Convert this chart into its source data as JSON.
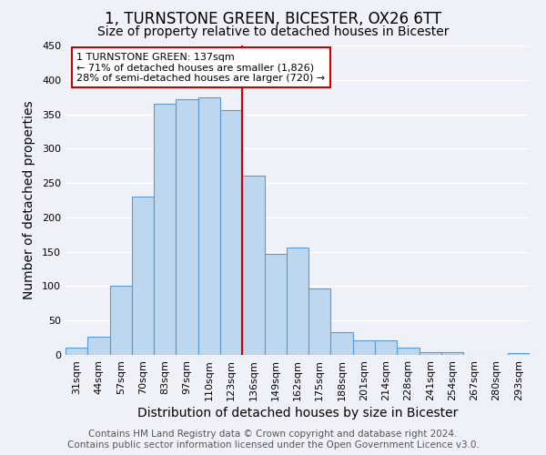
{
  "title": "1, TURNSTONE GREEN, BICESTER, OX26 6TT",
  "subtitle": "Size of property relative to detached houses in Bicester",
  "xlabel": "Distribution of detached houses by size in Bicester",
  "ylabel": "Number of detached properties",
  "bar_labels": [
    "31sqm",
    "44sqm",
    "57sqm",
    "70sqm",
    "83sqm",
    "97sqm",
    "110sqm",
    "123sqm",
    "136sqm",
    "149sqm",
    "162sqm",
    "175sqm",
    "188sqm",
    "201sqm",
    "214sqm",
    "228sqm",
    "241sqm",
    "254sqm",
    "267sqm",
    "280sqm",
    "293sqm"
  ],
  "bar_heights": [
    10,
    26,
    100,
    230,
    365,
    372,
    374,
    356,
    261,
    147,
    156,
    96,
    33,
    21,
    21,
    11,
    4,
    4,
    0,
    0,
    2
  ],
  "bar_color": "#bdd7ee",
  "bar_edge_color": "#5b9bd5",
  "bar_width": 1.0,
  "ylim": [
    0,
    450
  ],
  "yticks": [
    0,
    50,
    100,
    150,
    200,
    250,
    300,
    350,
    400,
    450
  ],
  "vline_x": 8,
  "vline_color": "#cc0000",
  "annotation_title": "1 TURNSTONE GREEN: 137sqm",
  "annotation_line1": "← 71% of detached houses are smaller (1,826)",
  "annotation_line2": "28% of semi-detached houses are larger (720) →",
  "annotation_box_color": "#ffffff",
  "annotation_box_edge": "#cc0000",
  "footer_line1": "Contains HM Land Registry data © Crown copyright and database right 2024.",
  "footer_line2": "Contains public sector information licensed under the Open Government Licence v3.0.",
  "background_color": "#eef2f8",
  "grid_color": "#ffffff",
  "title_fontsize": 12,
  "subtitle_fontsize": 10,
  "axis_label_fontsize": 10,
  "tick_fontsize": 8,
  "footer_fontsize": 7.5
}
